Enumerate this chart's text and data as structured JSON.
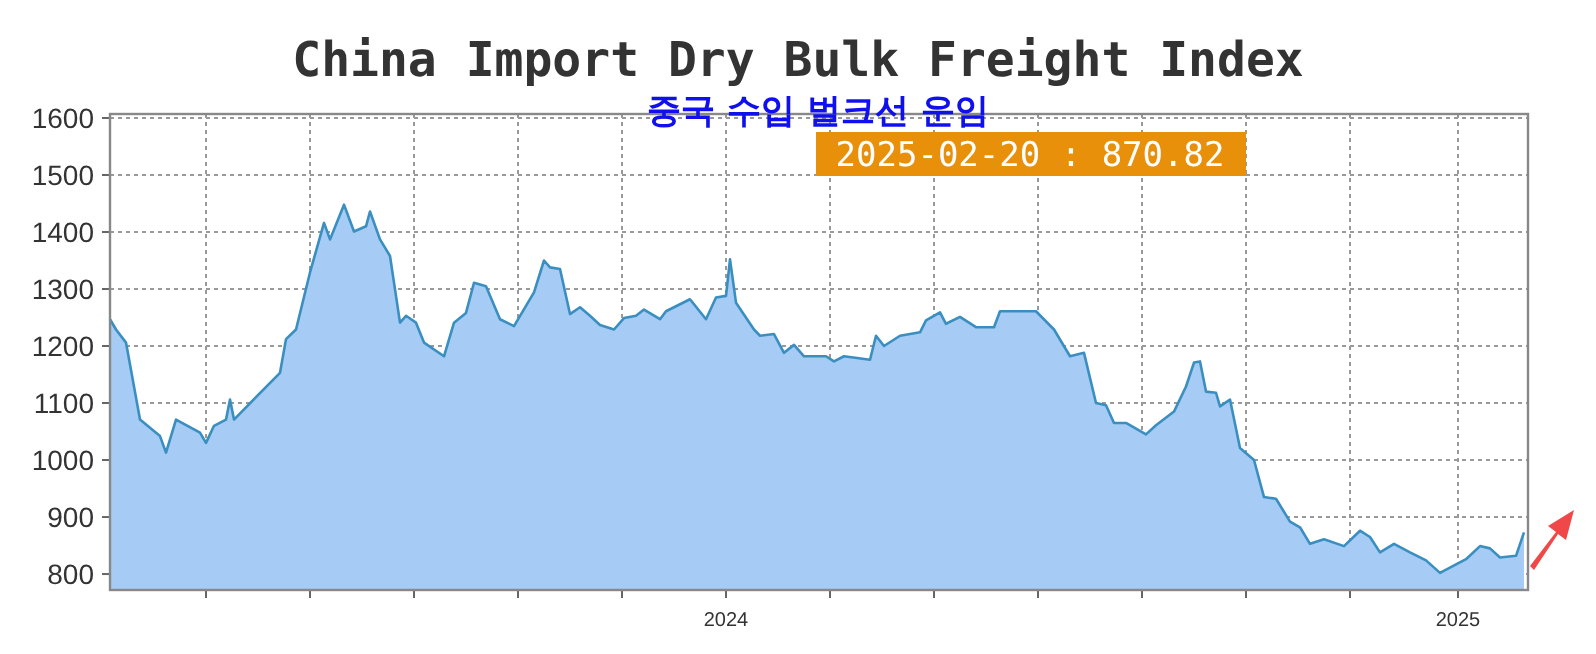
{
  "chart_data": {
    "type": "area",
    "title": "China Import Dry Bulk Freight Index",
    "subtitle": "중국 수입 벌크선 운임",
    "annotations": [
      "2025-02-20 : 870.82"
    ],
    "x": [
      "2023-02-27",
      "2023-03-02",
      "2023-03-07",
      "2023-03-14",
      "2023-03-24",
      "2023-03-27",
      "2023-04-01",
      "2023-04-13",
      "2023-04-16",
      "2023-04-20",
      "2023-04-26",
      "2023-04-28",
      "2023-04-30",
      "2023-05-23",
      "2023-05-26",
      "2023-05-31",
      "2023-06-07",
      "2023-06-14",
      "2023-06-17",
      "2023-06-24",
      "2023-06-29",
      "2023-07-05",
      "2023-07-07",
      "2023-07-12",
      "2023-07-17",
      "2023-07-22",
      "2023-07-25",
      "2023-07-30",
      "2023-08-03",
      "2023-08-13",
      "2023-08-18",
      "2023-08-24",
      "2023-08-28",
      "2023-09-03",
      "2023-09-10",
      "2023-09-17",
      "2023-09-27",
      "2023-10-02",
      "2023-10-05",
      "2023-10-10",
      "2023-10-15",
      "2023-10-20",
      "2023-10-25",
      "2023-10-30",
      "2023-11-06",
      "2023-11-11",
      "2023-11-17",
      "2023-11-21",
      "2023-11-29",
      "2023-12-02",
      "2023-12-14",
      "2023-12-22",
      "2023-12-27",
      "2024-01-01",
      "2024-01-03",
      "2024-01-06",
      "2024-01-15",
      "2024-01-18",
      "2024-01-25",
      "2024-01-30",
      "2024-02-04",
      "2024-02-09",
      "2024-02-20",
      "2024-02-24",
      "2024-02-29",
      "2024-03-13",
      "2024-03-16",
      "2024-03-20",
      "2024-03-28",
      "2024-04-07",
      "2024-04-10",
      "2024-04-17",
      "2024-04-20",
      "2024-04-27",
      "2024-05-05",
      "2024-05-14",
      "2024-05-17",
      "2024-06-04",
      "2024-06-13",
      "2024-06-21",
      "2024-06-28",
      "2024-07-04",
      "2024-07-09",
      "2024-07-13",
      "2024-07-19",
      "2024-07-29",
      "2024-08-03",
      "2024-08-12",
      "2024-08-18",
      "2024-08-22",
      "2024-08-25",
      "2024-08-28",
      "2024-09-02",
      "2024-09-04",
      "2024-09-09",
      "2024-09-14",
      "2024-09-21",
      "2024-09-26",
      "2024-10-02",
      "2024-10-09",
      "2024-10-14",
      "2024-10-19",
      "2024-10-26",
      "2024-11-05",
      "2024-11-13",
      "2024-11-18",
      "2024-11-23",
      "2024-11-30",
      "2024-12-08",
      "2024-12-16",
      "2024-12-23",
      "2025-01-05",
      "2025-01-12",
      "2025-01-17",
      "2025-01-22",
      "2025-01-30",
      "2025-02-03"
    ],
    "series": [
      {
        "color": "#a6cbf4",
        "values": [
          1247,
          1229,
          1206,
          1071,
          1042,
          1013,
          1071,
          1048,
          1030,
          1060,
          1071,
          1106,
          1071,
          1153,
          1212,
          1229,
          1329,
          1416,
          1387,
          1448,
          1401,
          1410,
          1436,
          1387,
          1358,
          1241,
          1253,
          1241,
          1206,
          1182,
          1241,
          1258,
          1311,
          1305,
          1247,
          1235,
          1294,
          1350,
          1338,
          1335,
          1256,
          1268,
          1253,
          1237,
          1229,
          1249,
          1253,
          1264,
          1247,
          1261,
          1282,
          1247,
          1285,
          1288,
          1352,
          1276,
          1229,
          1218,
          1221,
          1188,
          1202,
          1182,
          1182,
          1173,
          1182,
          1176,
          1218,
          1200,
          1218,
          1224,
          1245,
          1259,
          1239,
          1251,
          1233,
          1233,
          1261,
          1261,
          1229,
          1182,
          1188,
          1100,
          1096,
          1065,
          1065,
          1045,
          1061,
          1085,
          1129,
          1171,
          1173,
          1120,
          1118,
          1094,
          1106,
          1021,
          1000,
          935,
          932,
          892,
          882,
          853,
          861,
          849,
          876,
          865,
          838,
          853,
          838,
          824,
          802,
          826,
          849,
          845,
          829,
          832,
          873
        ]
      }
    ],
    "xlim": [
      "2023-02-27",
      "2025-02-05"
    ],
    "ylim": [
      772,
      1607
    ],
    "xticks": [
      {
        "value": "2023-04-16",
        "label": null
      },
      {
        "value": "2023-06-07",
        "label": null
      },
      {
        "value": "2023-07-29",
        "label": null
      },
      {
        "value": "2023-09-19",
        "label": null
      },
      {
        "value": "2023-11-10",
        "label": null
      },
      {
        "value": "2024-01-01",
        "label": "2024"
      },
      {
        "value": "2024-02-22",
        "label": null
      },
      {
        "value": "2024-04-14",
        "label": null
      },
      {
        "value": "2024-06-05",
        "label": null
      },
      {
        "value": "2024-07-27",
        "label": null
      },
      {
        "value": "2024-09-17",
        "label": null
      },
      {
        "value": "2024-11-08",
        "label": null
      },
      {
        "value": "2025-01-01",
        "label": "2025"
      }
    ],
    "yticks": [
      800,
      900,
      1000,
      1100,
      1200,
      1300,
      1400,
      1500,
      1600
    ],
    "grid": true
  }
}
